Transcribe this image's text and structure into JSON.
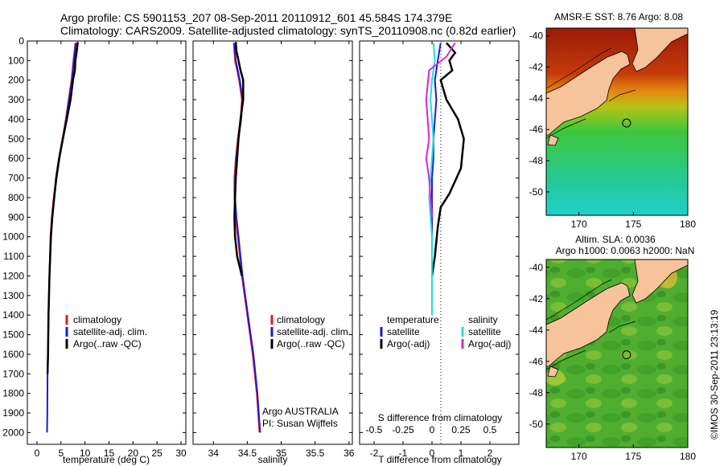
{
  "title": {
    "line1": "Argo profile: CS 5901153_207 08-Sep-2011 20110912_601 45.584S 174.379E",
    "line2": "Climatology: CARS2009. Satellite-adjusted climatology: synTS_20110908.nc (0.82d earlier)"
  },
  "credit": "©IMOS 30-Sep-2011 23:13:19",
  "colors": {
    "climatology": "#e41a1c",
    "satellite": "#1a1adc",
    "argo": "#000000",
    "salinity_satellite": "#22dddd",
    "salinity_argo": "#dd22dd"
  },
  "chart_data": [
    {
      "type": "line",
      "name": "temperature-profile",
      "xlabel": "temperature (deg C)",
      "xlim": [
        -2,
        31
      ],
      "xticks": [
        0,
        5,
        10,
        15,
        20,
        25,
        30
      ],
      "ylim": [
        0,
        2060
      ],
      "yticks": [
        0,
        100,
        200,
        300,
        400,
        500,
        600,
        700,
        800,
        900,
        1000,
        1100,
        1200,
        1300,
        1400,
        1500,
        1600,
        1700,
        1800,
        1900,
        2000
      ],
      "legend": [
        "climatology",
        "satellite-adj. clim.",
        "Argo(..raw -QC)"
      ],
      "legend_position": "lower-center",
      "series": [
        {
          "name": "climatology",
          "color_key": "climatology",
          "x": [
            8.0,
            7.6,
            7.2,
            6.6,
            6.0,
            5.3,
            4.6,
            4.0,
            3.5,
            3.1,
            2.8,
            2.6,
            2.4,
            2.3,
            2.2
          ],
          "y": [
            10,
            100,
            200,
            300,
            400,
            500,
            600,
            700,
            800,
            900,
            1000,
            1200,
            1400,
            1600,
            1700
          ]
        },
        {
          "name": "satellite-adj. clim.",
          "color_key": "satellite",
          "x": [
            8.1,
            7.7,
            7.3,
            6.7,
            6.1,
            5.4,
            4.7,
            4.1,
            3.6,
            3.2,
            2.9,
            2.6,
            2.4,
            2.3,
            2.2,
            2.15,
            2.1
          ],
          "y": [
            10,
            100,
            200,
            300,
            400,
            500,
            600,
            700,
            800,
            900,
            1000,
            1200,
            1400,
            1600,
            1700,
            1900,
            2000
          ]
        },
        {
          "name": "Argo(..raw -QC)",
          "color_key": "argo",
          "x": [
            8.5,
            8.3,
            8.0,
            7.9,
            7.5,
            7.0,
            6.2,
            5.4,
            4.6,
            4.0,
            3.6,
            3.2,
            2.9,
            2.6,
            2.4,
            2.3,
            2.2
          ],
          "y": [
            5,
            50,
            100,
            150,
            200,
            300,
            400,
            500,
            600,
            700,
            800,
            900,
            1000,
            1200,
            1400,
            1600,
            1700
          ]
        }
      ]
    },
    {
      "type": "line",
      "name": "salinity-profile",
      "xlabel": "salinity",
      "xlim": [
        33.7,
        36.05
      ],
      "xticks": [
        34,
        34.5,
        35,
        35.5,
        36
      ],
      "ylim": [
        0,
        2060
      ],
      "legend": [
        "climatology",
        "satellite-adj. clim.",
        "Argo(..raw -QC)"
      ],
      "legend_position": "lower-center",
      "annotation": {
        "line1": "Argo AUSTRALIA",
        "line2": "PI: Susan Wijffels"
      },
      "series": [
        {
          "name": "climatology",
          "color_key": "climatology",
          "x": [
            34.3,
            34.32,
            34.38,
            34.42,
            34.4,
            34.36,
            34.33,
            34.31,
            34.31,
            34.33,
            34.36,
            34.42,
            34.5,
            34.58,
            34.64,
            34.68
          ],
          "y": [
            10,
            100,
            200,
            300,
            400,
            500,
            600,
            700,
            800,
            900,
            1000,
            1200,
            1400,
            1600,
            1800,
            2000
          ]
        },
        {
          "name": "satellite-adj. clim.",
          "color_key": "satellite",
          "x": [
            34.31,
            34.33,
            34.39,
            34.43,
            34.41,
            34.37,
            34.34,
            34.32,
            34.32,
            34.34,
            34.37,
            34.43,
            34.51,
            34.59,
            34.65,
            34.69
          ],
          "y": [
            10,
            100,
            200,
            300,
            400,
            500,
            600,
            700,
            800,
            900,
            1000,
            1200,
            1400,
            1600,
            1800,
            2000
          ]
        },
        {
          "name": "Argo(..raw -QC)",
          "color_key": "argo",
          "x": [
            34.33,
            34.34,
            34.37,
            34.4,
            34.44,
            34.44,
            34.4,
            34.37,
            34.35,
            34.33,
            34.32,
            34.31,
            34.32,
            34.35,
            34.42
          ],
          "y": [
            5,
            50,
            100,
            150,
            200,
            300,
            400,
            500,
            600,
            700,
            800,
            900,
            1000,
            1100,
            1200
          ]
        }
      ]
    },
    {
      "type": "line",
      "name": "difference-profile",
      "xlabel": "T difference from climatology",
      "xlabel_top": "S difference from climatology",
      "xlim": [
        -2.5,
        3.0
      ],
      "xticks": [
        -2,
        -1,
        0,
        1,
        2
      ],
      "xticks_top": [
        "-0.5",
        "-0.25",
        "0",
        "0.25",
        "0.5"
      ],
      "ylim": [
        0,
        2060
      ],
      "legend": {
        "temperature": {
          "title": "temperature",
          "items": [
            "satellite",
            "Argo(-adj)"
          ]
        },
        "salinity": {
          "title": "salinity",
          "items": [
            "satellite",
            "Argo(-adj)"
          ]
        }
      },
      "series": [
        {
          "name": "temperature satellite",
          "color_key": "satellite",
          "x": [
            0.3,
            0.2,
            0.1,
            0.15,
            0.1,
            0.05,
            0.05,
            0.0,
            0.0,
            0.0,
            0.0,
            0.0
          ],
          "y": [
            10,
            100,
            200,
            300,
            400,
            500,
            600,
            700,
            800,
            1000,
            1200,
            1400
          ]
        },
        {
          "name": "temperature Argo(-adj)",
          "color_key": "argo",
          "x": [
            0.5,
            0.8,
            0.6,
            0.7,
            0.3,
            0.5,
            0.9,
            1.1,
            1.0,
            0.6,
            0.3,
            0.2,
            0.1,
            0.0
          ],
          "y": [
            10,
            60,
            100,
            150,
            200,
            300,
            400,
            500,
            650,
            780,
            850,
            950,
            1100,
            1200
          ]
        },
        {
          "name": "salinity satellite",
          "color_key": "salinity_satellite",
          "x": [
            0.05,
            0.1,
            0.0,
            -0.05,
            0.0,
            0.05,
            0.0,
            -0.1,
            0.0,
            0.0,
            0.0
          ],
          "y": [
            10,
            100,
            200,
            300,
            400,
            500,
            600,
            800,
            1000,
            1200,
            1400
          ]
        },
        {
          "name": "salinity Argo(-adj)",
          "color_key": "salinity_argo",
          "x": [
            0.8,
            0.5,
            -0.1,
            -0.2,
            -0.15,
            -0.1,
            -0.2,
            -0.1,
            -0.05,
            0.0
          ],
          "y": [
            10,
            80,
            150,
            300,
            400,
            500,
            600,
            700,
            800,
            900
          ]
        }
      ]
    },
    {
      "type": "heatmap",
      "name": "sst-map",
      "title": "AMSR-E SST: 8.76 Argo: 8.08",
      "xlim": [
        167,
        180
      ],
      "ylim": [
        -51.5,
        -39.5
      ],
      "xticks": [
        170,
        175,
        180
      ],
      "yticks": [
        -40,
        -42,
        -44,
        -46,
        -48,
        -50
      ],
      "argo_location": {
        "lon": 174.379,
        "lat": -45.584
      }
    },
    {
      "type": "heatmap",
      "name": "sla-map",
      "title_line1": "Altim. SLA: 0.0036",
      "title_line2": "Argo h1000: 0.0063 h2000: NaN",
      "xlim": [
        167,
        180
      ],
      "ylim": [
        -51.5,
        -39.5
      ],
      "xticks": [
        170,
        175,
        180
      ],
      "yticks": [
        -40,
        -42,
        -44,
        -46,
        -48,
        -50
      ],
      "argo_location": {
        "lon": 174.379,
        "lat": -45.584
      }
    }
  ]
}
